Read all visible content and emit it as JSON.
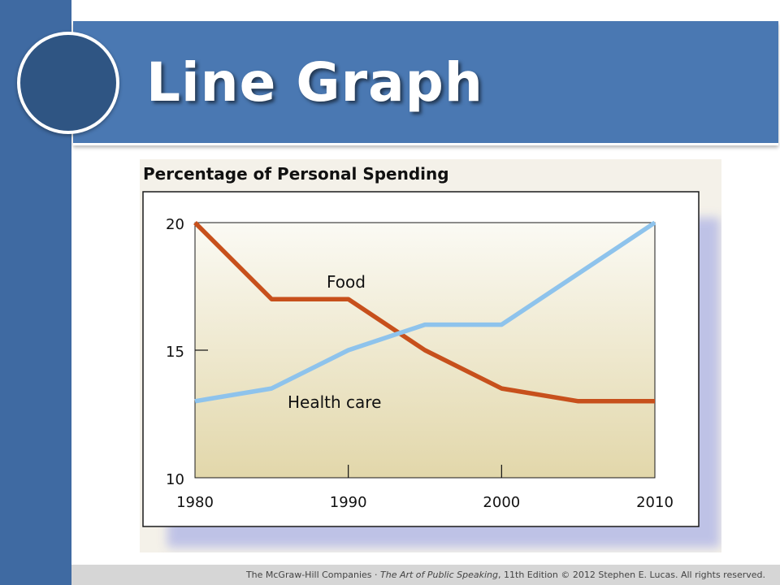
{
  "slide": {
    "title": "Line Graph",
    "footer": {
      "publisher": "The McGraw-Hill Companies",
      "separator": "·",
      "book_title": "The Art of Public Speaking",
      "edition": ", 11th Edition",
      "copyright": "© 2012 Stephen E. Lucas. All rights reserved."
    },
    "colors": {
      "left_bar": "#3f6aa2",
      "banner": "#4a78b2",
      "circle": "#2f5583"
    }
  },
  "chart_data": {
    "type": "line",
    "title": "Percentage of Personal Spending",
    "xlabel": "",
    "ylabel": "",
    "x": [
      1980,
      1985,
      1990,
      1995,
      2000,
      2005,
      2010
    ],
    "x_ticks": [
      "1980",
      "1990",
      "2000",
      "2010"
    ],
    "y_ticks": [
      "10",
      "15",
      "20"
    ],
    "xlim": [
      1980,
      2010
    ],
    "ylim": [
      10,
      20
    ],
    "grid": false,
    "legend": "inline labels",
    "series": [
      {
        "name": "Food",
        "color": "#c7501c",
        "values": [
          20,
          17,
          17,
          15,
          13.5,
          13,
          13
        ]
      },
      {
        "name": "Health care",
        "color": "#8ec3ec",
        "values": [
          13,
          13.5,
          15,
          16,
          16,
          18,
          20
        ]
      }
    ]
  }
}
